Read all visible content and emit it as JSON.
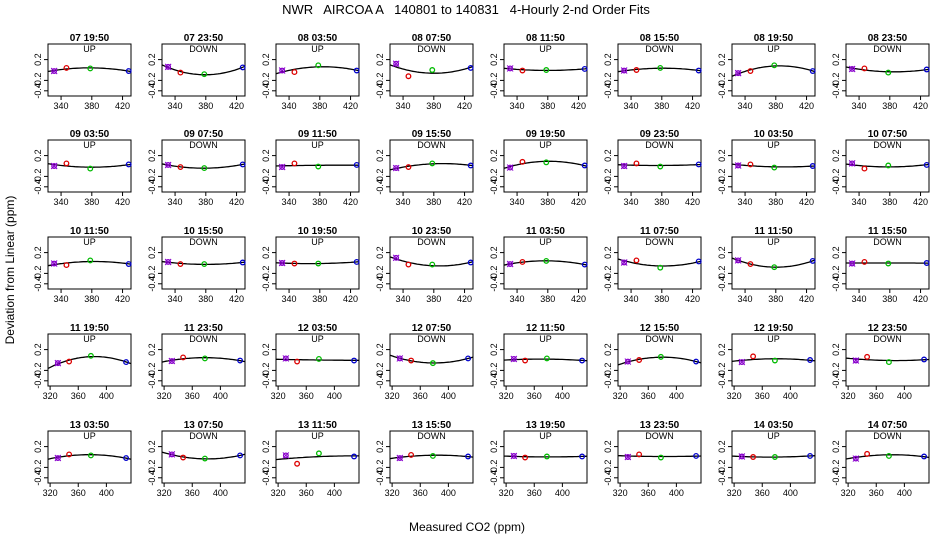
{
  "title": "NWR   AIRCOA A   140801 to 140831   4-Hourly 2-nd Order Fits",
  "chart_data": {
    "type": "scatter",
    "title": "NWR   AIRCOA A   140801 to 140831   4-Hourly 2-nd Order Fits",
    "xlabel": "Measured CO2 (ppm)",
    "ylabel": "Deviation from Linear (ppm)",
    "ylim": [
      -0.5,
      0.5
    ],
    "yticks": [
      0.2,
      -0.2,
      -0.4
    ],
    "grid": false,
    "colors": {
      "first": "#8800cc",
      "second": "#dd0000",
      "third": "#00bb00",
      "fourth": "#0000cc",
      "fit": "#000000"
    },
    "x_axis_sets": [
      {
        "rows": [
          0,
          1,
          2
        ],
        "xlim": [
          323,
          431
        ],
        "ticks": [
          340,
          380,
          420
        ]
      },
      {
        "rows": [
          3,
          4
        ],
        "xlim": [
          317,
          435
        ],
        "ticks": [
          320,
          360,
          400
        ]
      }
    ],
    "x_points": [
      331,
      347,
      378,
      428
    ],
    "panels": [
      {
        "label": "07 19:50",
        "direction": "UP",
        "y": [
          -0.02,
          0.04,
          0.03,
          -0.02
        ]
      },
      {
        "label": "07 23:50",
        "direction": "DOWN",
        "y": [
          0.06,
          -0.05,
          -0.08,
          0.05
        ]
      },
      {
        "label": "08 03:50",
        "direction": "UP",
        "y": [
          -0.01,
          -0.04,
          0.09,
          -0.01
        ]
      },
      {
        "label": "08 07:50",
        "direction": "DOWN",
        "y": [
          0.12,
          -0.12,
          0.0,
          0.04
        ]
      },
      {
        "label": "08 11:50",
        "direction": "UP",
        "y": [
          0.03,
          -0.01,
          0.0,
          0.02
        ]
      },
      {
        "label": "08 15:50",
        "direction": "DOWN",
        "y": [
          -0.01,
          0.0,
          0.04,
          -0.01
        ]
      },
      {
        "label": "08 19:50",
        "direction": "UP",
        "y": [
          -0.06,
          -0.02,
          0.09,
          -0.02
        ]
      },
      {
        "label": "08 23:50",
        "direction": "DOWN",
        "y": [
          0.02,
          0.03,
          -0.05,
          0.01
        ]
      },
      {
        "label": "09 03:50",
        "direction": "UP",
        "y": [
          0.0,
          0.05,
          -0.05,
          0.03
        ]
      },
      {
        "label": "09 07:50",
        "direction": "DOWN",
        "y": [
          0.02,
          -0.02,
          -0.04,
          0.03
        ]
      },
      {
        "label": "09 11:50",
        "direction": "UP",
        "y": [
          -0.02,
          0.05,
          -0.01,
          0.02
        ]
      },
      {
        "label": "09 15:50",
        "direction": "DOWN",
        "y": [
          -0.04,
          -0.02,
          0.05,
          0.01
        ]
      },
      {
        "label": "09 19:50",
        "direction": "UP",
        "y": [
          -0.03,
          0.08,
          0.07,
          0.01
        ]
      },
      {
        "label": "09 23:50",
        "direction": "DOWN",
        "y": [
          0.0,
          0.05,
          -0.01,
          0.03
        ]
      },
      {
        "label": "10 03:50",
        "direction": "UP",
        "y": [
          0.01,
          0.03,
          -0.03,
          0.0
        ]
      },
      {
        "label": "10 07:50",
        "direction": "DOWN",
        "y": [
          0.05,
          -0.05,
          0.01,
          0.02
        ]
      },
      {
        "label": "10 11:50",
        "direction": "UP",
        "y": [
          -0.01,
          -0.04,
          0.05,
          -0.02
        ]
      },
      {
        "label": "10 15:50",
        "direction": "DOWN",
        "y": [
          0.02,
          -0.02,
          -0.02,
          0.01
        ]
      },
      {
        "label": "10 19:50",
        "direction": "UP",
        "y": [
          0.0,
          -0.01,
          -0.01,
          0.02
        ]
      },
      {
        "label": "10 23:50",
        "direction": "DOWN",
        "y": [
          0.1,
          -0.03,
          -0.03,
          0.01
        ]
      },
      {
        "label": "11 03:50",
        "direction": "UP",
        "y": [
          -0.02,
          0.02,
          0.04,
          -0.03
        ]
      },
      {
        "label": "11 07:50",
        "direction": "DOWN",
        "y": [
          0.01,
          0.05,
          -0.09,
          0.03
        ]
      },
      {
        "label": "11 11:50",
        "direction": "UP",
        "y": [
          0.05,
          -0.02,
          -0.08,
          0.04
        ]
      },
      {
        "label": "11 15:50",
        "direction": "DOWN",
        "y": [
          -0.01,
          0.02,
          -0.01,
          0.0
        ]
      },
      {
        "label": "11 19:50",
        "direction": "UP",
        "y": [
          -0.06,
          -0.03,
          0.08,
          -0.04
        ]
      },
      {
        "label": "11 23:50",
        "direction": "DOWN",
        "y": [
          -0.02,
          0.05,
          0.03,
          -0.01
        ]
      },
      {
        "label": "12 03:50",
        "direction": "UP",
        "y": [
          0.03,
          -0.03,
          0.02,
          -0.01
        ]
      },
      {
        "label": "12 07:50",
        "direction": "DOWN",
        "y": [
          0.03,
          -0.01,
          -0.06,
          0.03
        ]
      },
      {
        "label": "12 11:50",
        "direction": "UP",
        "y": [
          0.02,
          -0.01,
          0.03,
          -0.01
        ]
      },
      {
        "label": "12 15:50",
        "direction": "DOWN",
        "y": [
          -0.03,
          0.0,
          0.06,
          -0.03
        ]
      },
      {
        "label": "12 19:50",
        "direction": "UP",
        "y": [
          -0.04,
          0.07,
          -0.01,
          0.0
        ]
      },
      {
        "label": "12 23:50",
        "direction": "DOWN",
        "y": [
          -0.01,
          0.06,
          -0.04,
          0.01
        ]
      },
      {
        "label": "13 03:50",
        "direction": "UP",
        "y": [
          -0.02,
          0.05,
          0.03,
          -0.02
        ]
      },
      {
        "label": "13 07:50",
        "direction": "DOWN",
        "y": [
          0.05,
          -0.01,
          -0.03,
          0.03
        ]
      },
      {
        "label": "13 11:50",
        "direction": "UP",
        "y": [
          0.03,
          -0.13,
          0.07,
          0.01
        ]
      },
      {
        "label": "13 15:50",
        "direction": "DOWN",
        "y": [
          -0.02,
          0.04,
          0.02,
          0.01
        ]
      },
      {
        "label": "13 19:50",
        "direction": "UP",
        "y": [
          0.02,
          -0.01,
          0.01,
          0.01
        ]
      },
      {
        "label": "13 23:50",
        "direction": "DOWN",
        "y": [
          0.0,
          0.05,
          -0.01,
          0.02
        ]
      },
      {
        "label": "14 03:50",
        "direction": "UP",
        "y": [
          0.01,
          0.0,
          0.0,
          0.02
        ]
      },
      {
        "label": "14 07:50",
        "direction": "DOWN",
        "y": [
          -0.03,
          0.06,
          0.02,
          0.01
        ]
      }
    ]
  }
}
